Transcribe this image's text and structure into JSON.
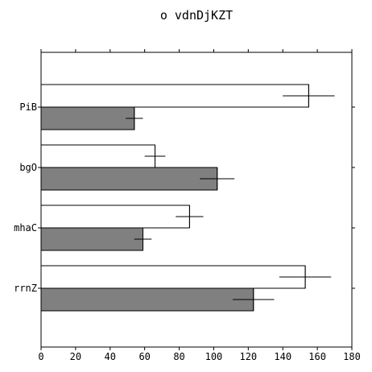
{
  "chart_data": {
    "type": "bar",
    "orientation": "horizontal",
    "title": "o vdnDjKZT",
    "xlabel": "",
    "ylabel": "",
    "categories": [
      "PiB",
      "bgO",
      "mhaC",
      "rrnZ"
    ],
    "xlim": [
      0,
      180
    ],
    "xticks": [
      0,
      20,
      40,
      60,
      80,
      100,
      120,
      140,
      160,
      180
    ],
    "grid": false,
    "legend": "none",
    "series": [
      {
        "color": "#ffffff",
        "values": [
          155,
          66,
          86,
          153
        ],
        "errors": [
          15,
          6,
          8,
          15
        ]
      },
      {
        "color": "#808080",
        "values": [
          54,
          102,
          59,
          123
        ],
        "errors": [
          5,
          10,
          5,
          12
        ]
      }
    ]
  }
}
